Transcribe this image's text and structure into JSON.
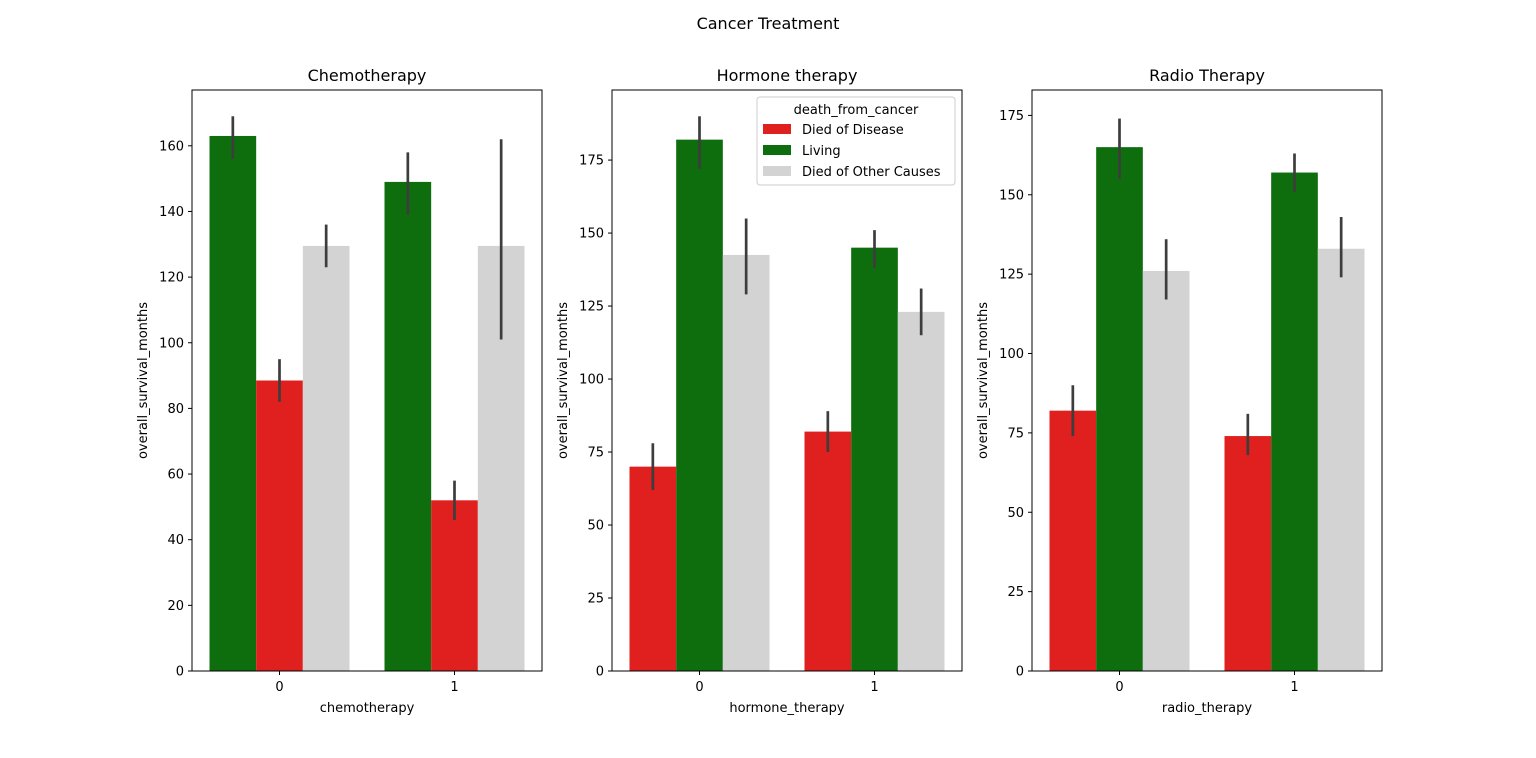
{
  "figure": {
    "suptitle": "Cancer Treatment"
  },
  "legend": {
    "title": "death_from_cancer",
    "entries": [
      "Died of Disease",
      "Living",
      "Died of Other Causes"
    ],
    "placement": "upper-right of second subplot"
  },
  "colors": {
    "Died of Disease": "#e01f1f",
    "Living": "#0e6e0e",
    "Died of Other Causes": "#d3d3d3",
    "errorbar": "#3d3d3d"
  },
  "chart_data": [
    {
      "type": "bar",
      "title": "Chemotherapy",
      "xlabel": "chemotherapy",
      "ylabel": "overall_survival_months",
      "categories": [
        "0",
        "1"
      ],
      "hue_order": [
        "Living",
        "Died of Disease",
        "Died of Other Causes"
      ],
      "ylim": [
        0,
        177
      ],
      "yticks": [
        0,
        20,
        40,
        60,
        80,
        100,
        120,
        140,
        160
      ],
      "grid": false,
      "series": [
        {
          "name": "Living",
          "values": [
            163,
            149
          ],
          "ci_low": [
            156,
            139
          ],
          "ci_high": [
            169,
            158
          ]
        },
        {
          "name": "Died of Disease",
          "values": [
            88.5,
            52
          ],
          "ci_low": [
            82,
            46
          ],
          "ci_high": [
            95,
            58
          ]
        },
        {
          "name": "Died of Other Causes",
          "values": [
            129.5,
            129.5
          ],
          "ci_low": [
            123,
            101
          ],
          "ci_high": [
            136,
            162
          ]
        }
      ]
    },
    {
      "type": "bar",
      "title": "Hormone therapy",
      "xlabel": "hormone_therapy",
      "ylabel": "overall_survival_months",
      "categories": [
        "0",
        "1"
      ],
      "hue_order": [
        "Died of Disease",
        "Living",
        "Died of Other Causes"
      ],
      "ylim": [
        0,
        199
      ],
      "yticks": [
        0,
        25,
        50,
        75,
        100,
        125,
        150,
        175
      ],
      "grid": false,
      "series": [
        {
          "name": "Died of Disease",
          "values": [
            70,
            82
          ],
          "ci_low": [
            62,
            75
          ],
          "ci_high": [
            78,
            89
          ]
        },
        {
          "name": "Living",
          "values": [
            182,
            145
          ],
          "ci_low": [
            172,
            138
          ],
          "ci_high": [
            190,
            151
          ]
        },
        {
          "name": "Died of Other Causes",
          "values": [
            142.5,
            123
          ],
          "ci_low": [
            129,
            115
          ],
          "ci_high": [
            155,
            131
          ]
        }
      ]
    },
    {
      "type": "bar",
      "title": "Radio Therapy",
      "xlabel": "radio_therapy",
      "ylabel": "overall_survival_months",
      "categories": [
        "0",
        "1"
      ],
      "hue_order": [
        "Died of Disease",
        "Living",
        "Died of Other Causes"
      ],
      "ylim": [
        0,
        183
      ],
      "yticks": [
        0,
        25,
        50,
        75,
        100,
        125,
        150,
        175
      ],
      "grid": false,
      "series": [
        {
          "name": "Died of Disease",
          "values": [
            82,
            74
          ],
          "ci_low": [
            74,
            68
          ],
          "ci_high": [
            90,
            81
          ]
        },
        {
          "name": "Living",
          "values": [
            165,
            157
          ],
          "ci_low": [
            155,
            151
          ],
          "ci_high": [
            174,
            163
          ]
        },
        {
          "name": "Died of Other Causes",
          "values": [
            126,
            133
          ],
          "ci_low": [
            117,
            124
          ],
          "ci_high": [
            136,
            143
          ]
        }
      ]
    }
  ]
}
